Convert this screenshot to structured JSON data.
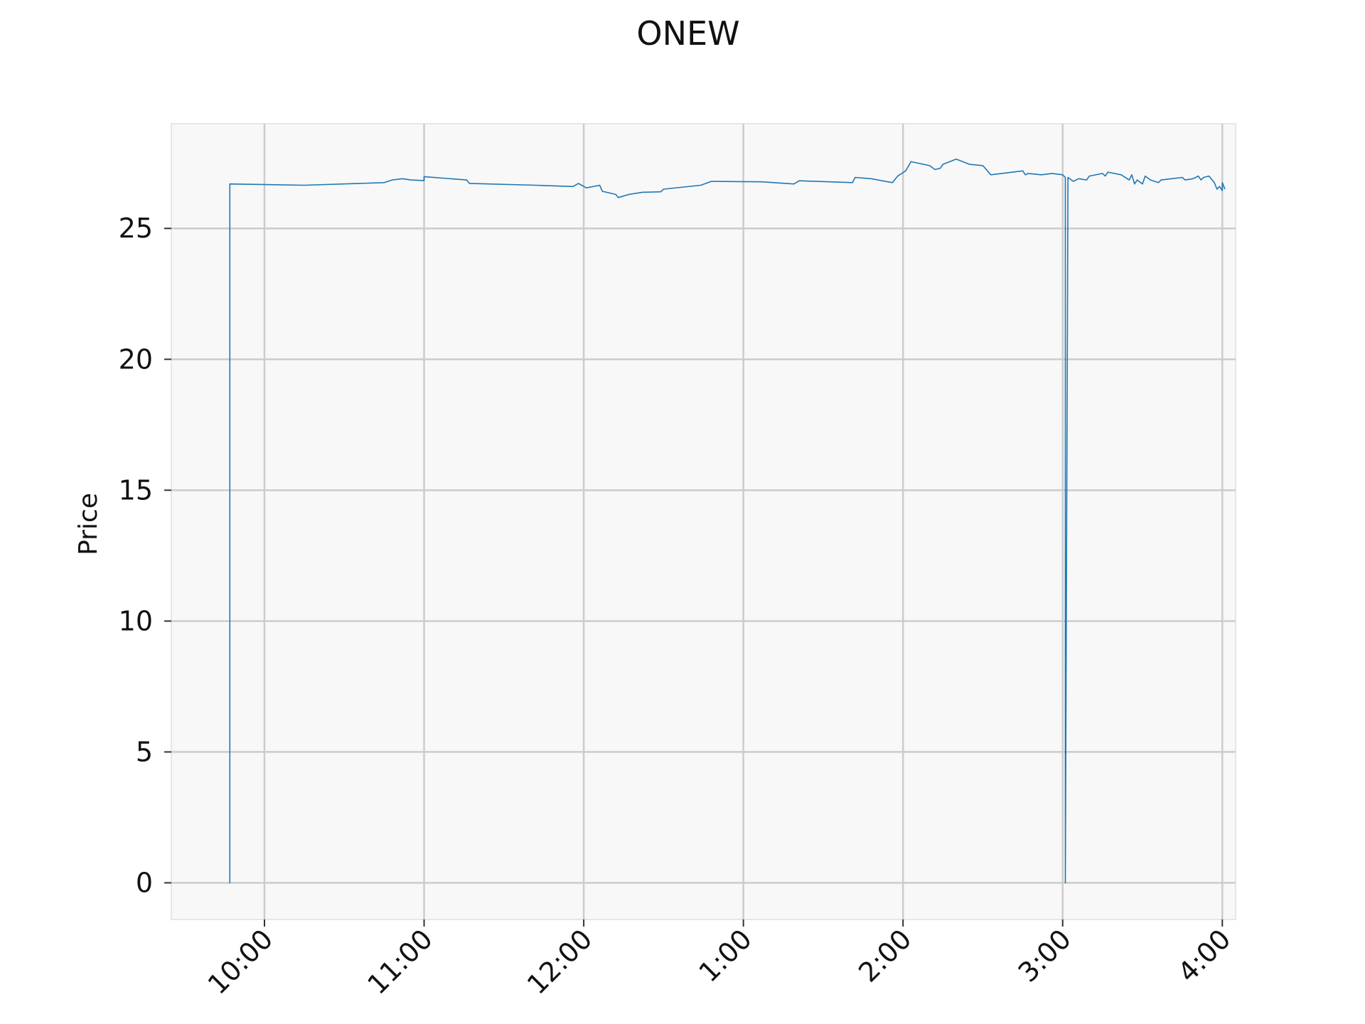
{
  "chart_data": {
    "type": "line",
    "title": "ONEW",
    "xlabel": "",
    "ylabel": "Price",
    "ylim": [
      -1.4,
      29.0
    ],
    "xlim": [
      "09:25",
      "16:05"
    ],
    "grid": true,
    "y_ticks": [
      0,
      5,
      10,
      15,
      20,
      25
    ],
    "y_tick_labels": [
      "0",
      "5",
      "10",
      "15",
      "20",
      "25"
    ],
    "x_ticks": [
      "10:00",
      "11:00",
      "12:00",
      "13:00",
      "14:00",
      "15:00",
      "16:00"
    ],
    "x_tick_labels": [
      "10:00",
      "11:00",
      "12:00",
      "1:00",
      "2:00",
      "3:00",
      "4:00"
    ],
    "colors": {
      "line": "#1f77b4",
      "grid": "#cccccc",
      "plot_bg": "#f8f8f8",
      "frame": "#e6e6e6"
    },
    "series": [
      {
        "points": [
          [
            "09:47",
            26.2
          ],
          [
            "09:47",
            0
          ],
          [
            "09:47",
            26.7
          ],
          [
            "10:15",
            26.65
          ],
          [
            "10:45",
            26.75
          ],
          [
            "10:48",
            26.85
          ],
          [
            "10:52",
            26.9
          ],
          [
            "10:55",
            26.85
          ],
          [
            "11:00",
            26.83
          ],
          [
            "11:00",
            26.98
          ],
          [
            "11:16",
            26.85
          ],
          [
            "11:17",
            26.72
          ],
          [
            "11:42",
            26.65
          ],
          [
            "11:56",
            26.6
          ],
          [
            "11:58",
            26.72
          ],
          [
            "12:01",
            26.55
          ],
          [
            "12:06",
            26.65
          ],
          [
            "12:07",
            26.42
          ],
          [
            "12:12",
            26.3
          ],
          [
            "12:13",
            26.18
          ],
          [
            "12:17",
            26.3
          ],
          [
            "12:22",
            26.38
          ],
          [
            "12:29",
            26.4
          ],
          [
            "12:30",
            26.5
          ],
          [
            "12:44",
            26.65
          ],
          [
            "12:48",
            26.8
          ],
          [
            "13:07",
            26.78
          ],
          [
            "13:19",
            26.7
          ],
          [
            "13:21",
            26.82
          ],
          [
            "13:41",
            26.75
          ],
          [
            "13:42",
            26.95
          ],
          [
            "13:48",
            26.9
          ],
          [
            "13:56",
            26.75
          ],
          [
            "13:58",
            27.0
          ],
          [
            "14:01",
            27.2
          ],
          [
            "14:03",
            27.55
          ],
          [
            "14:10",
            27.4
          ],
          [
            "14:12",
            27.25
          ],
          [
            "14:14",
            27.3
          ],
          [
            "14:15",
            27.45
          ],
          [
            "14:20",
            27.65
          ],
          [
            "14:25",
            27.45
          ],
          [
            "14:30",
            27.4
          ],
          [
            "14:33",
            27.05
          ],
          [
            "14:45",
            27.2
          ],
          [
            "14:46",
            27.05
          ],
          [
            "14:47",
            27.1
          ],
          [
            "14:52",
            27.05
          ],
          [
            "14:56",
            27.1
          ],
          [
            "15:00",
            27.05
          ],
          [
            "15:01",
            26.95
          ],
          [
            "15:01",
            0
          ],
          [
            "15:02",
            26.95
          ],
          [
            "15:04",
            26.8
          ],
          [
            "15:06",
            26.9
          ],
          [
            "15:09",
            26.85
          ],
          [
            "15:10",
            27.0
          ],
          [
            "15:15",
            27.1
          ],
          [
            "15:16",
            27.0
          ],
          [
            "15:17",
            27.15
          ],
          [
            "15:22",
            27.05
          ],
          [
            "15:25",
            26.85
          ],
          [
            "15:26",
            27.05
          ],
          [
            "15:27",
            26.7
          ],
          [
            "15:28",
            26.85
          ],
          [
            "15:30",
            26.7
          ],
          [
            "15:31",
            27.0
          ],
          [
            "15:33",
            26.85
          ],
          [
            "15:36",
            26.75
          ],
          [
            "15:37",
            26.85
          ],
          [
            "15:41",
            26.9
          ],
          [
            "15:45",
            26.95
          ],
          [
            "15:46",
            26.85
          ],
          [
            "15:49",
            26.9
          ],
          [
            "15:51",
            27.0
          ],
          [
            "15:52",
            26.85
          ],
          [
            "15:53",
            26.95
          ],
          [
            "15:55",
            27.0
          ],
          [
            "15:57",
            26.75
          ],
          [
            "15:58",
            26.5
          ],
          [
            "15:59",
            26.6
          ],
          [
            "16:00",
            26.45
          ],
          [
            "16:00",
            26.75
          ],
          [
            "16:01",
            26.5
          ]
        ]
      }
    ]
  }
}
